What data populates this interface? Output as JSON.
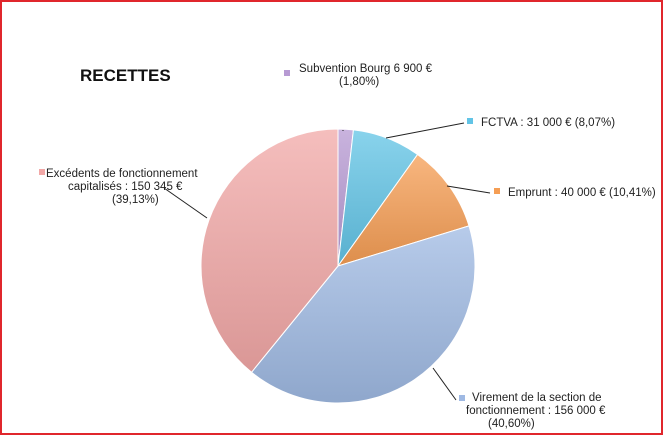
{
  "chart_data": {
    "type": "pie",
    "title": "RECETTES",
    "slices": [
      {
        "lines": [
          "Subvention Bourg 6 900 €",
          "(1,80%)"
        ],
        "value": 6900,
        "percent": 1.8,
        "color": "#b79ad3"
      },
      {
        "lines": [
          "FCTVA :  31 000 € (8,07%)"
        ],
        "value": 31000,
        "percent": 8.07,
        "color": "#62c4e6"
      },
      {
        "lines": [
          "Emprunt :  40 000 € (10,41%)"
        ],
        "value": 40000,
        "percent": 10.41,
        "color": "#f59e54"
      },
      {
        "lines": [
          "Virement de la section de",
          "fonctionnement :  156 000 €",
          "(40,60%)"
        ],
        "value": 156000,
        "percent": 40.6,
        "color": "#9fb9e3"
      },
      {
        "lines": [
          "Excédents de fonctionnement",
          "capitalisés :  150 345 €",
          "(39,13%)"
        ],
        "value": 150345,
        "percent": 39.13,
        "color": "#f2a8a7"
      }
    ]
  }
}
